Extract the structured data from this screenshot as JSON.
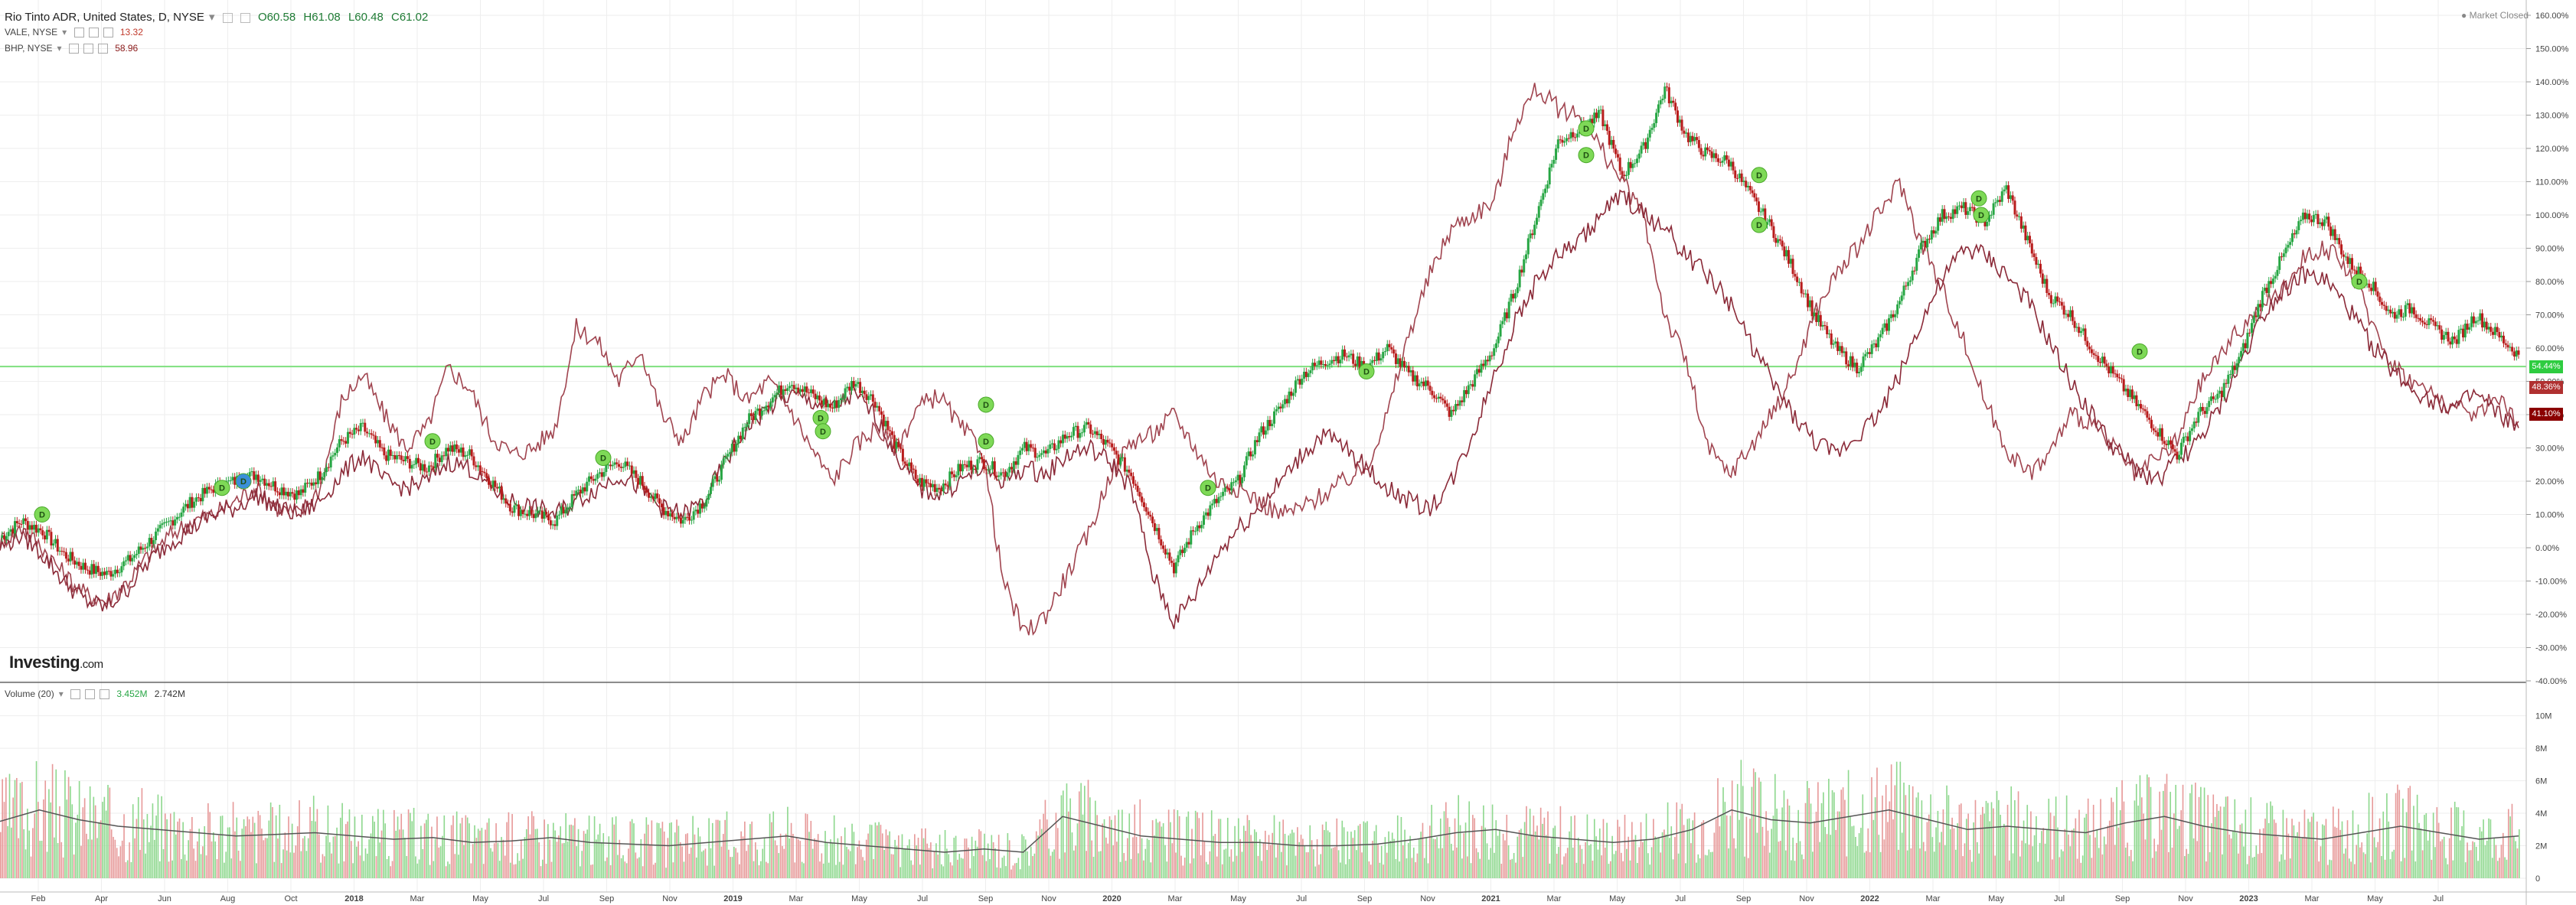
{
  "header": {
    "main_symbol": "Rio Tinto ADR, United States, D, NYSE",
    "dropdown_glyph": "▾",
    "open": "O60.58",
    "high": "H61.08",
    "low": "L60.48",
    "close": "C61.02",
    "compare": [
      {
        "symbol": "VALE, NYSE",
        "value": "13.32",
        "color": "#c0392b"
      },
      {
        "symbol": "BHP, NYSE",
        "value": "58.96",
        "color": "#8b1a1a"
      }
    ],
    "volume_label": "Volume (20)",
    "volume_value_1": "3.452M",
    "volume_value_2": "2.742M"
  },
  "market_status": "● Market Closed",
  "logo": {
    "main": "Investing",
    "suffix": ".com"
  },
  "price_tags": [
    {
      "text": "54.44%",
      "color": "#2ecc40",
      "value": 54.44
    },
    {
      "text": "48.36%",
      "color": "#b03030",
      "value": 48.36
    },
    {
      "text": "41.10%",
      "color": "#8b0000",
      "value": 41.1
    }
  ],
  "dividend_marker": "D",
  "colors": {
    "up": "#27a644",
    "down": "#b81c1c",
    "compare": "#9b3b4a",
    "grid": "#eeeeee",
    "hline": "#7fe07f",
    "vol_up": "#8fd88f",
    "vol_down": "#e79a9a",
    "vol_ma": "#555555",
    "marker": "#7ed957"
  },
  "chart_data": {
    "type": "line",
    "title": "Rio Tinto ADR, United States, D, NYSE",
    "yaxis_unit": "%",
    "ylim": [
      -40,
      160
    ],
    "y_ticks": [
      "160.00%",
      "150.00%",
      "140.00%",
      "130.00%",
      "120.00%",
      "110.00%",
      "100.00%",
      "90.00%",
      "80.00%",
      "70.00%",
      "60.00%",
      "50.00%",
      "40.00%",
      "30.00%",
      "20.00%",
      "10.00%",
      "0.00%",
      "-10.00%",
      "-20.00%",
      "-30.00%",
      "-40.00%"
    ],
    "x_ticks": [
      "Feb",
      "Apr",
      "Jun",
      "Aug",
      "Oct",
      "2018",
      "Mar",
      "May",
      "Jul",
      "Sep",
      "Nov",
      "2019",
      "Mar",
      "May",
      "Jul",
      "Sep",
      "Nov",
      "2020",
      "Mar",
      "May",
      "Jul",
      "Sep",
      "Nov",
      "2021",
      "Mar",
      "May",
      "Jul",
      "Sep",
      "Nov",
      "2022",
      "Mar",
      "May",
      "Jul",
      "Sep",
      "Nov",
      "2023",
      "Mar",
      "May",
      "Jul"
    ],
    "series": [
      {
        "name": "Rio Tinto ADR, United States, D, NYSE",
        "style": "candles",
        "values": [
          3,
          8,
          5,
          -2,
          -6,
          -8,
          -4,
          2,
          8,
          14,
          18,
          20,
          22,
          18,
          16,
          22,
          32,
          36,
          28,
          26,
          24,
          30,
          28,
          20,
          12,
          10,
          8,
          16,
          22,
          26,
          20,
          12,
          8,
          14,
          26,
          38,
          44,
          50,
          46,
          42,
          50,
          44,
          30,
          20,
          18,
          24,
          26,
          22,
          30,
          28,
          34,
          36,
          30,
          22,
          8,
          -6,
          6,
          14,
          20,
          34,
          42,
          52,
          56,
          58,
          54,
          60,
          52,
          48,
          40,
          50,
          60,
          78,
          100,
          122,
          126,
          130,
          112,
          120,
          138,
          124,
          118,
          116,
          106,
          96,
          84,
          70,
          60,
          54,
          62,
          74,
          90,
          100,
          102,
          98,
          108,
          92,
          76,
          70,
          60,
          52,
          44,
          36,
          28,
          40,
          46,
          58,
          76,
          88,
          100,
          98,
          86,
          80,
          70,
          72,
          66,
          62,
          70,
          64,
          58
        ]
      },
      {
        "name": "VALE, NYSE",
        "style": "line",
        "values": [
          2,
          6,
          0,
          -8,
          -14,
          -16,
          -10,
          -2,
          4,
          8,
          10,
          14,
          18,
          12,
          10,
          18,
          44,
          52,
          40,
          30,
          36,
          54,
          48,
          34,
          28,
          30,
          36,
          66,
          62,
          50,
          60,
          40,
          32,
          46,
          52,
          44,
          50,
          42,
          30,
          20,
          30,
          36,
          30,
          42,
          46,
          36,
          30,
          -10,
          -26,
          -20,
          -8,
          4,
          22,
          32,
          34,
          40,
          30,
          20,
          18,
          14,
          10,
          12,
          16,
          20,
          24,
          40,
          64,
          82,
          96,
          100,
          104,
          128,
          138,
          132,
          130,
          120,
          110,
          100,
          70,
          56,
          30,
          22,
          30,
          40,
          52,
          70,
          82,
          90,
          100,
          110,
          92,
          78,
          62,
          44,
          30,
          22,
          28,
          40,
          38,
          30,
          22,
          26,
          32,
          48,
          58,
          66,
          72,
          78,
          88,
          90,
          84,
          70,
          56,
          50,
          46,
          42,
          40,
          46,
          38
        ]
      },
      {
        "name": "BHP, NYSE",
        "style": "line",
        "values": [
          0,
          4,
          -2,
          -10,
          -16,
          -18,
          -12,
          -4,
          2,
          6,
          10,
          12,
          16,
          12,
          10,
          14,
          22,
          28,
          20,
          18,
          20,
          26,
          24,
          18,
          14,
          12,
          10,
          14,
          18,
          22,
          18,
          12,
          10,
          14,
          26,
          36,
          42,
          46,
          44,
          42,
          46,
          40,
          28,
          18,
          16,
          20,
          24,
          20,
          24,
          22,
          28,
          30,
          26,
          18,
          -8,
          -22,
          -14,
          -2,
          6,
          12,
          20,
          28,
          34,
          30,
          24,
          18,
          14,
          12,
          20,
          34,
          52,
          68,
          80,
          88,
          92,
          100,
          106,
          100,
          96,
          88,
          82,
          74,
          62,
          50,
          40,
          32,
          28,
          34,
          40,
          52,
          68,
          80,
          90,
          88,
          82,
          74,
          62,
          50,
          40,
          30,
          24,
          20,
          26,
          32,
          42,
          56,
          70,
          78,
          82,
          80,
          72,
          62,
          54,
          48,
          44,
          42,
          46,
          40,
          36
        ]
      }
    ],
    "dividend_markers_pct": [
      10,
      18,
      20,
      32,
      27,
      39,
      43,
      35,
      32,
      18,
      53,
      126,
      118,
      97,
      112,
      100,
      105,
      59,
      80
    ],
    "volume": {
      "name": "Volume (20)",
      "ylim_millions": [
        0,
        10.5
      ],
      "y_ticks": [
        "10M",
        "8M",
        "6M",
        "4M",
        "2M",
        "0"
      ],
      "ma_values_millions": [
        3.5,
        4.2,
        3.6,
        3.2,
        3.0,
        2.8,
        2.6,
        2.7,
        2.8,
        2.6,
        2.4,
        2.5,
        2.2,
        2.3,
        2.5,
        2.2,
        2.1,
        2.0,
        2.2,
        2.4,
        2.6,
        2.2,
        2.0,
        1.8,
        1.6,
        1.8,
        1.6,
        3.8,
        3.2,
        2.6,
        2.4,
        2.2,
        2.2,
        2.0,
        2.0,
        2.1,
        2.4,
        2.8,
        3.0,
        2.6,
        2.4,
        2.2,
        2.4,
        3.0,
        4.2,
        3.6,
        3.4,
        3.8,
        4.2,
        3.6,
        3.0,
        3.2,
        3.0,
        2.8,
        3.4,
        3.8,
        3.2,
        2.8,
        2.6,
        2.4,
        2.8,
        3.2,
        2.8,
        2.4,
        2.6
      ]
    }
  }
}
